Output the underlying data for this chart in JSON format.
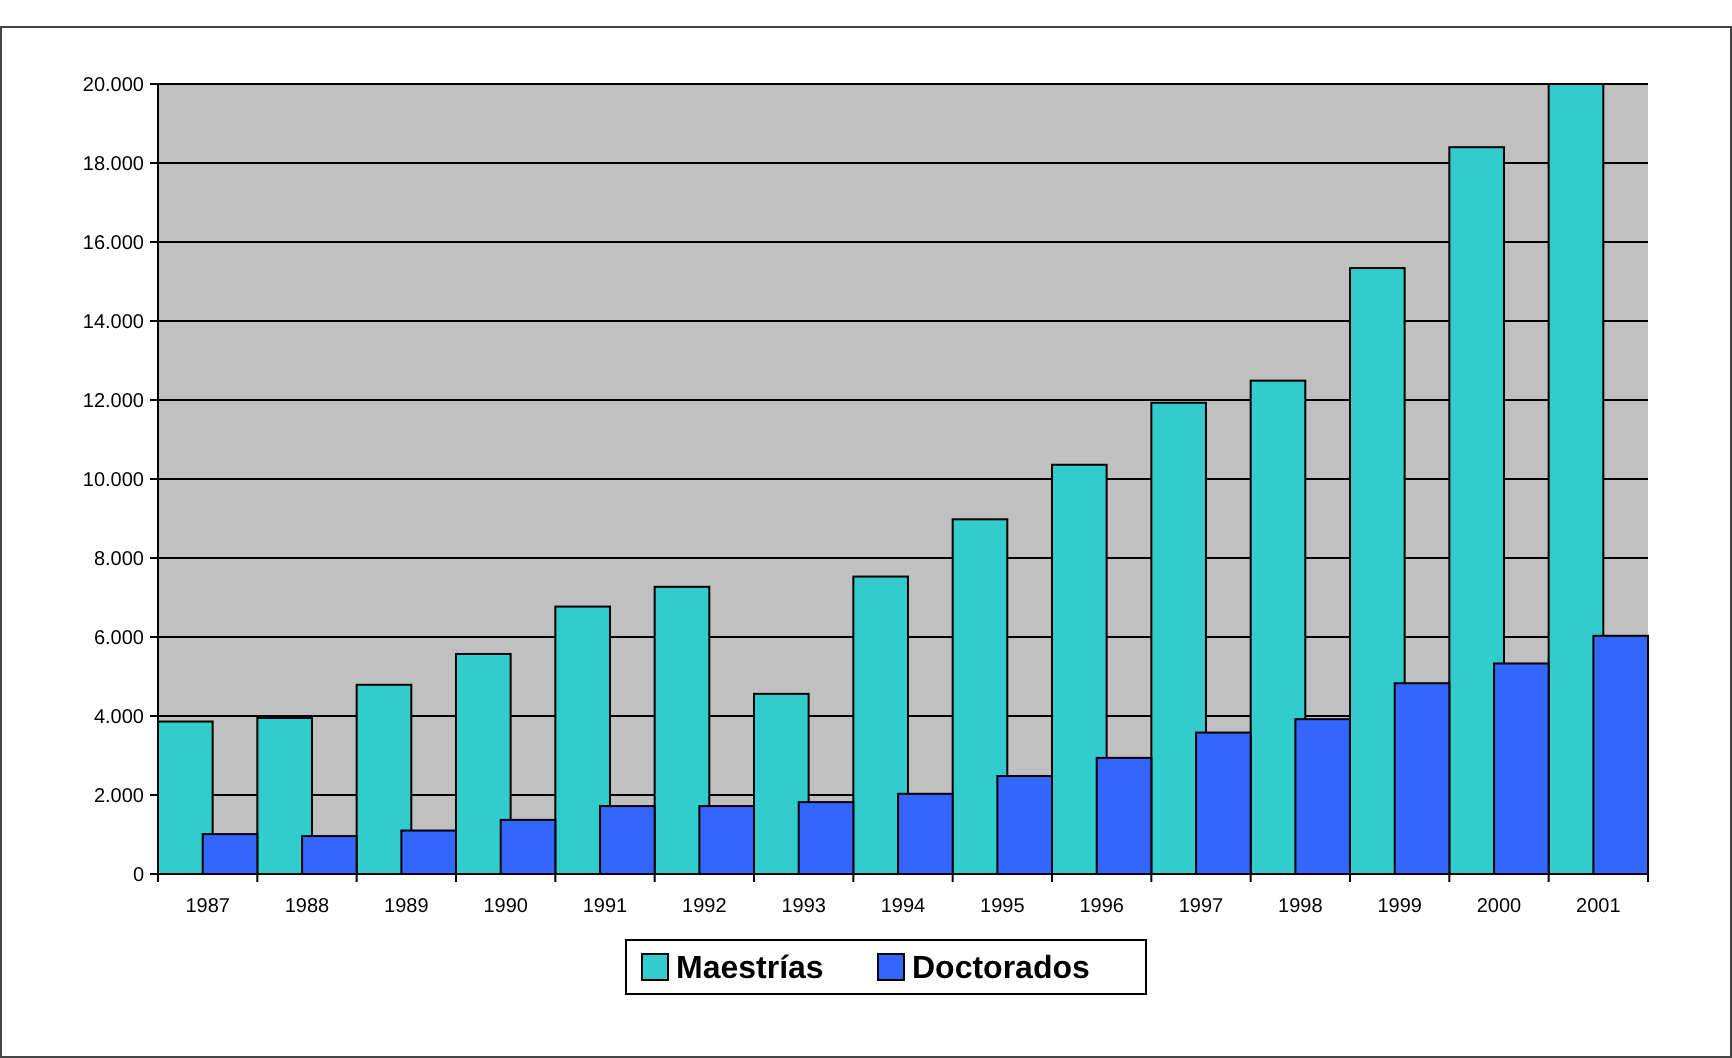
{
  "chart_data": {
    "type": "bar",
    "categories": [
      "1987",
      "1988",
      "1989",
      "1990",
      "1991",
      "1992",
      "1993",
      "1994",
      "1995",
      "1996",
      "1997",
      "1998",
      "1999",
      "2000",
      "2001"
    ],
    "series": [
      {
        "name": "Maestrías",
        "color": "#33cccc",
        "values": [
          3860,
          3950,
          4790,
          5570,
          6770,
          7270,
          4560,
          7530,
          8980,
          10360,
          11930,
          12490,
          15340,
          18400,
          20000
        ]
      },
      {
        "name": "Doctorados",
        "color": "#3366ff",
        "values": [
          1010,
          960,
          1100,
          1370,
          1720,
          1720,
          1820,
          2030,
          2480,
          2940,
          3580,
          3920,
          4830,
          5330,
          6030
        ]
      }
    ],
    "ylim": [
      0,
      20000
    ],
    "yticks": [
      0,
      {
        "value": 2000,
        "label": "2.000"
      },
      {
        "value": 4000,
        "label": "4.000"
      },
      {
        "value": 6000,
        "label": "6.000"
      },
      {
        "value": 8000,
        "label": "8.000"
      },
      {
        "value": 10000,
        "label": "10.000"
      },
      {
        "value": 12000,
        "label": "12.000"
      },
      {
        "value": 14000,
        "label": "14.000"
      },
      {
        "value": 16000,
        "label": "16.000"
      },
      {
        "value": 18000,
        "label": "18.000"
      },
      {
        "value": 20000,
        "label": "20.000"
      }
    ],
    "grid": "y",
    "legend": "bottom"
  }
}
